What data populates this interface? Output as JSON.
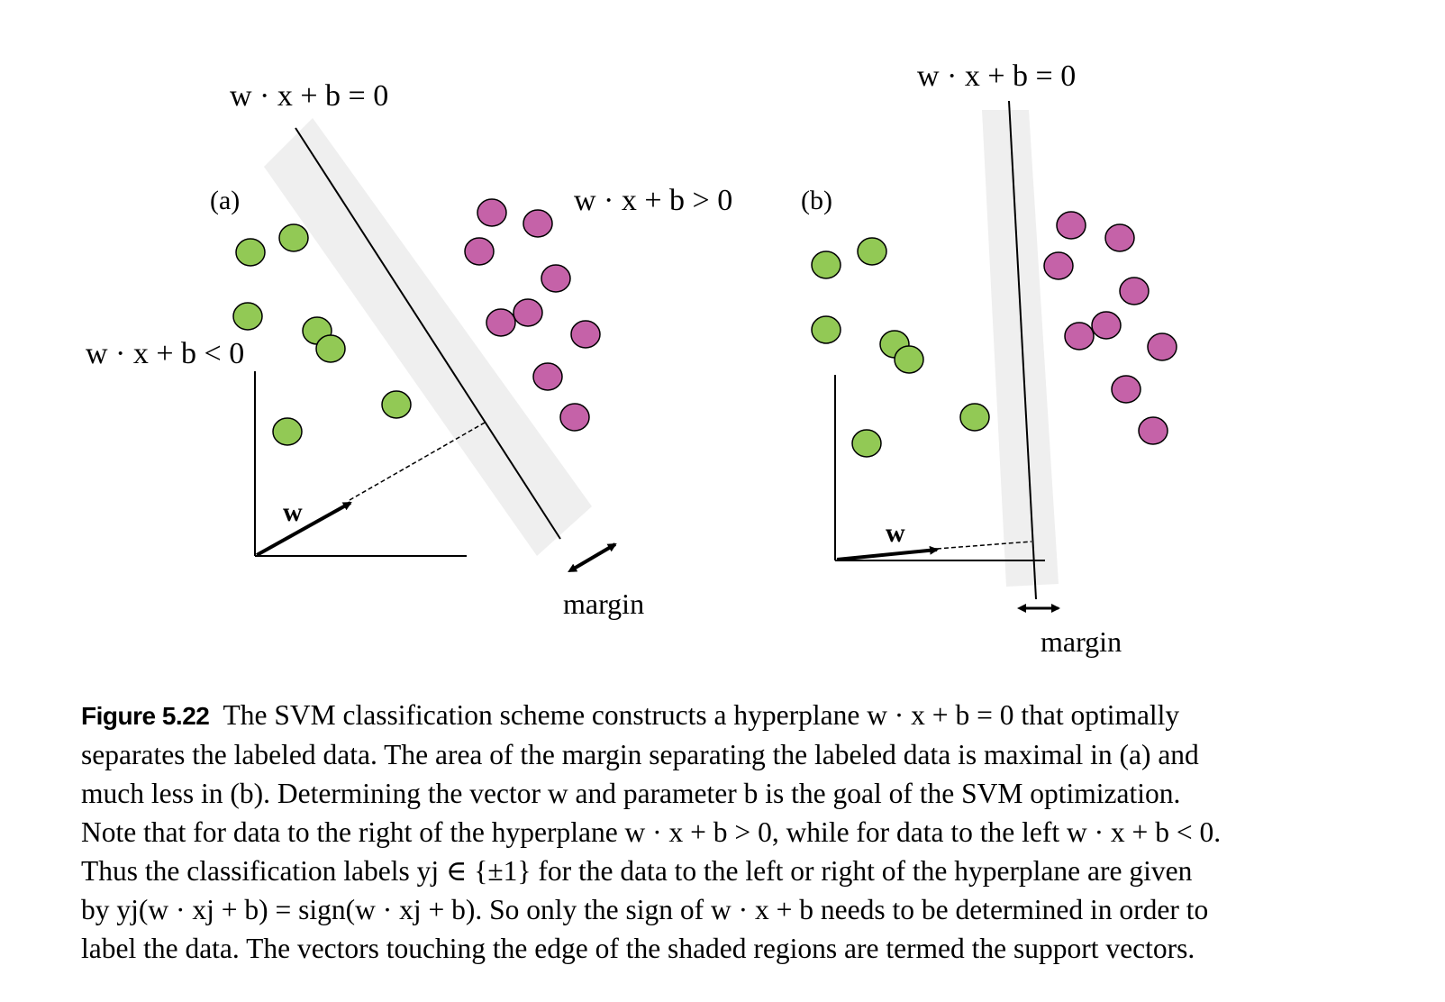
{
  "panel_a": {
    "label": "(a)",
    "hyperplane_eq": "w · x + b = 0",
    "positive_eq": "w · x + b > 0",
    "negative_eq": "w · x + b < 0",
    "vector_label": "w",
    "margin_label": "margin"
  },
  "panel_b": {
    "label": "(b)",
    "hyperplane_eq": "w · x + b = 0",
    "vector_label": "w",
    "margin_label": "margin"
  },
  "colors": {
    "class_negative": "#92c955",
    "class_positive": "#c562a8",
    "margin_band": "#efefef",
    "stroke": "#000000"
  },
  "caption": {
    "figure_number": "Figure 5.22",
    "lines": [
      "The SVM classification scheme constructs a hyperplane w · x + b = 0 that optimally",
      "separates the labeled data. The area of the margin separating the labeled data is maximal in (a) and",
      "much less in (b). Determining the vector w and parameter b is the goal of the SVM optimization.",
      "Note that for data to the right of the hyperplane w · x + b > 0, while for data to the left w · x + b < 0.",
      "Thus the classification labels yj ∈ {±1} for the data to the left or right of the hyperplane are given",
      "by yj(w · xj + b) = sign(w · xj + b). So only the sign of w · x + b needs to be determined in order to",
      "label the data. The vectors touching the edge of the shaded regions are termed the support vectors."
    ]
  }
}
